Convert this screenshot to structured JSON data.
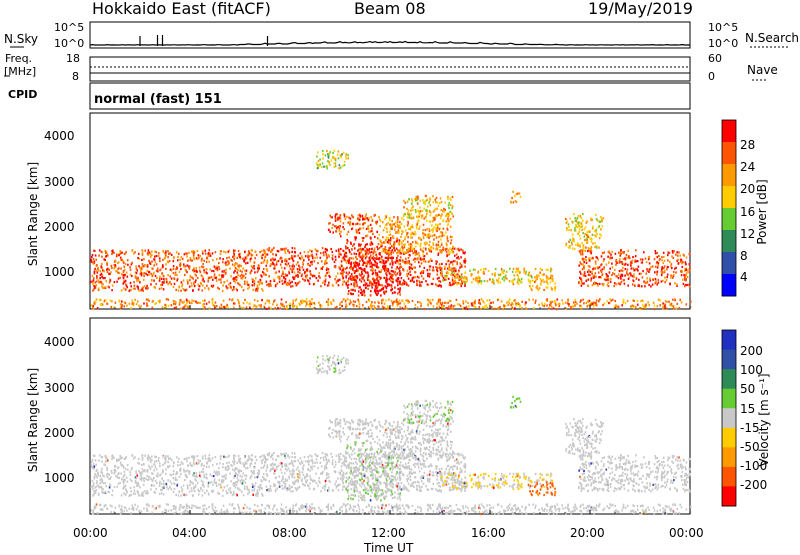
{
  "header": {
    "radar": "Hokkaido East (fitACF)",
    "beam": "Beam 08",
    "date": "19/May/2019"
  },
  "noise_panel": {
    "left_label": "N.Sky",
    "right_label": "N.Search",
    "ticks_left": [
      "10^5",
      "10^0"
    ],
    "ticks_right": [
      "10^5",
      "10^0"
    ]
  },
  "freq_panel": {
    "left_label_line1": "Freq.",
    "left_label_line2": "[MHz]",
    "left_ticks": [
      "18",
      "8"
    ],
    "right_label": "Nave",
    "right_ticks": [
      "60",
      "0"
    ]
  },
  "cpid": {
    "label": "CPID",
    "value": "normal (fast) 151"
  },
  "power_panel": {
    "ylabel": "Slant Range [km]",
    "yticks": [
      "4000",
      "3000",
      "2000",
      "1000"
    ],
    "colorbar_label": "Power [dB]",
    "colorbar_ticks": [
      "28",
      "24",
      "20",
      "16",
      "12",
      "8",
      "4"
    ],
    "colors": [
      "#0000ff",
      "#2f4fa8",
      "#2e8b57",
      "#66cc33",
      "#ffcc00",
      "#ff9900",
      "#ff5500",
      "#ff0000"
    ]
  },
  "velocity_panel": {
    "ylabel": "Slant Range [km]",
    "yticks": [
      "4000",
      "3000",
      "2000",
      "1000"
    ],
    "colorbar_label": "Velocity [m s⁻¹]",
    "colorbar_ticks": [
      "200",
      "100",
      "50",
      "15",
      "-15",
      "-50",
      "-100",
      "-200"
    ],
    "colors": [
      "#2030c0",
      "#3050a8",
      "#2e8b57",
      "#66cc33",
      "#c8c8c8",
      "#ffcc00",
      "#ff9900",
      "#ff5500",
      "#ff0000"
    ]
  },
  "xaxis": {
    "ticks": [
      "00:00",
      "04:00",
      "08:00",
      "12:00",
      "16:00",
      "20:00",
      "00:00"
    ],
    "label": "Time UT"
  },
  "chart_data": {
    "type": "heatmap",
    "x_range_hours": [
      0,
      24
    ],
    "y_range_km": [
      180,
      4500
    ],
    "power_db_range": [
      0,
      30
    ],
    "velocity_range": [
      -250,
      250
    ],
    "scatter_regions": [
      {
        "t0": 0,
        "t1": 7,
        "r0": 600,
        "r1": 1500,
        "power": 24,
        "velocity": 0
      },
      {
        "t0": 7,
        "t1": 15,
        "r0": 700,
        "r1": 1550,
        "power": 26,
        "velocity": 0
      },
      {
        "t0": 10.2,
        "t1": 12.4,
        "r0": 500,
        "r1": 1800,
        "power": 29,
        "velocity": 5
      },
      {
        "t0": 9.5,
        "t1": 11.5,
        "r0": 1800,
        "r1": 2300,
        "power": 25,
        "velocity": 0
      },
      {
        "t0": 11.5,
        "t1": 14.5,
        "r0": 1400,
        "r1": 2300,
        "power": 20,
        "velocity": 0
      },
      {
        "t0": 12.5,
        "t1": 14.5,
        "r0": 2200,
        "r1": 2700,
        "power": 18,
        "velocity": 5
      },
      {
        "t0": 14,
        "t1": 18.5,
        "r0": 750,
        "r1": 1100,
        "power": 18,
        "velocity": -10
      },
      {
        "t0": 17.5,
        "t1": 18.6,
        "r0": 600,
        "r1": 900,
        "power": 20,
        "velocity": -80
      },
      {
        "t0": 19.5,
        "t1": 24,
        "r0": 700,
        "r1": 1500,
        "power": 25,
        "velocity": 0
      },
      {
        "t0": 19,
        "t1": 20.5,
        "r0": 1500,
        "r1": 2300,
        "power": 18,
        "velocity": 0
      },
      {
        "t0": 0,
        "t1": 24,
        "r0": 200,
        "r1": 420,
        "power": 22,
        "velocity": 0
      },
      {
        "t0": 9,
        "t1": 10.3,
        "r0": 3300,
        "r1": 3700,
        "power": 15,
        "velocity": 5
      },
      {
        "t0": 16.8,
        "t1": 17.2,
        "r0": 2550,
        "r1": 2800,
        "power": 20,
        "velocity": 20
      }
    ],
    "noise_sky": [
      1,
      1,
      1,
      1,
      1,
      1,
      1.5,
      2,
      2.5,
      3,
      3.2,
      3.5,
      3.5,
      3.2,
      3,
      2.5,
      2,
      1.5,
      1.2,
      1,
      1,
      1,
      1,
      1
    ],
    "grid": false
  }
}
